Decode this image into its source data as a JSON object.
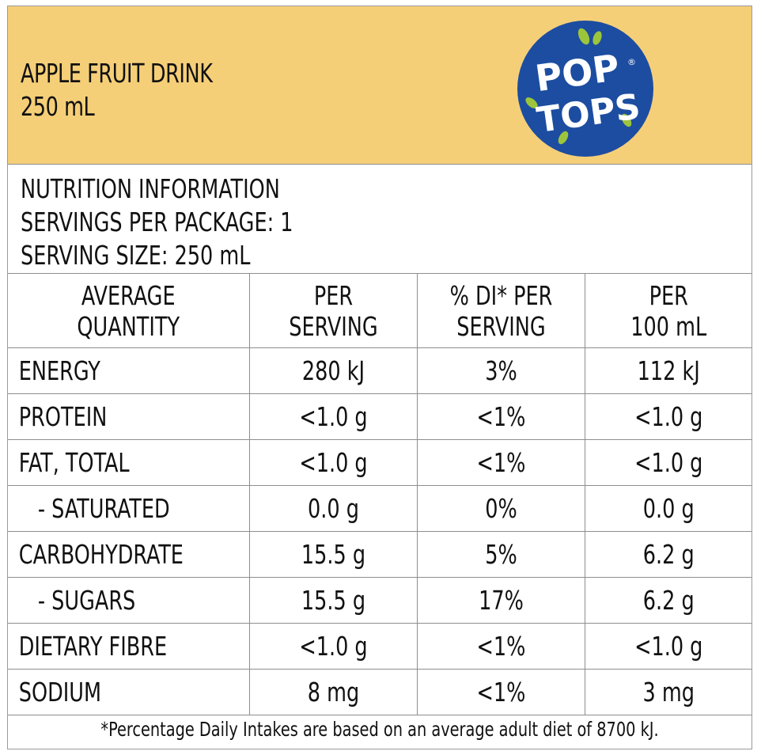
{
  "product": {
    "name": "APPLE FRUIT DRINK",
    "volume": "250 mL"
  },
  "logo": {
    "line1": "POP",
    "line2": "TOPS",
    "registered": "®",
    "circle_color": "#1c4da1",
    "leaf_color": "#9cc53c"
  },
  "info": {
    "title": "NUTRITION INFORMATION",
    "servings": "SERVINGS PER PACKAGE: 1",
    "serving_size": "SERVING SIZE: 250 mL"
  },
  "table": {
    "headers": [
      [
        "AVERAGE",
        "QUANTITY"
      ],
      [
        "PER",
        "SERVING"
      ],
      [
        "% DI* PER",
        "SERVING"
      ],
      [
        "PER",
        "100 mL"
      ]
    ],
    "rows": [
      {
        "label": "ENERGY",
        "per_serving": "280 kJ",
        "di": "3%",
        "per_100": "112 kJ"
      },
      {
        "label": "PROTEIN",
        "per_serving": "<1.0 g",
        "di": "<1%",
        "per_100": "<1.0 g"
      },
      {
        "label": "FAT, TOTAL",
        "per_serving": "<1.0 g",
        "di": "<1%",
        "per_100": "<1.0 g"
      },
      {
        "label": "- SATURATED",
        "per_serving": "0.0 g",
        "di": "0%",
        "per_100": "0.0 g"
      },
      {
        "label": "CARBOHYDRATE",
        "per_serving": "15.5 g",
        "di": "5%",
        "per_100": "6.2 g"
      },
      {
        "label": "- SUGARS",
        "per_serving": "15.5 g",
        "di": "17%",
        "per_100": "6.2 g"
      },
      {
        "label": "DIETARY FIBRE",
        "per_serving": "<1.0 g",
        "di": "<1%",
        "per_100": "<1.0 g"
      },
      {
        "label": "SODIUM",
        "per_serving": "8 mg",
        "di": "<1%",
        "per_100": "3 mg"
      }
    ]
  },
  "footnote": "*Percentage Daily Intakes are based on an average adult diet of 8700 kJ.",
  "colors": {
    "header_bg": "#f5cf78",
    "border": "#8e8e8e"
  }
}
